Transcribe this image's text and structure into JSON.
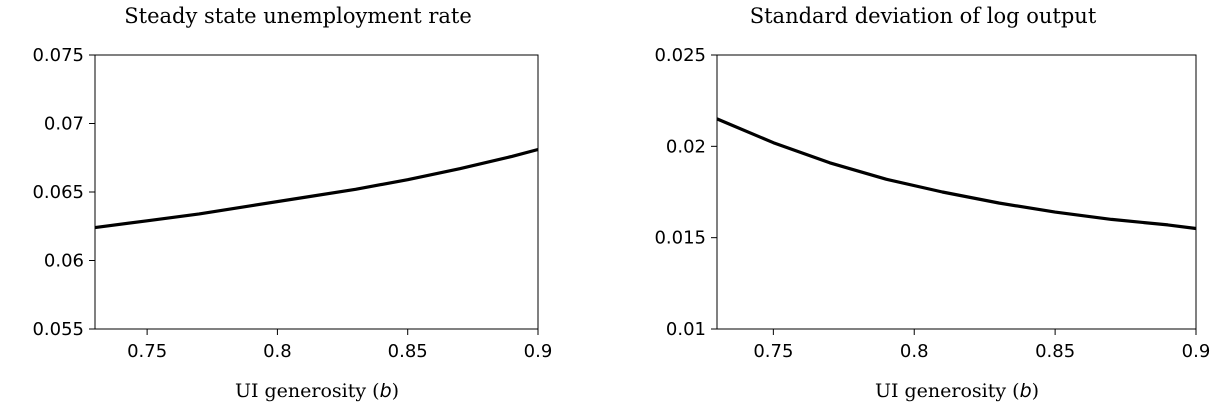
{
  "chart_data": [
    {
      "type": "line",
      "title": "Steady state unemployment rate",
      "xlabel_text": "UI generosity (",
      "xlabel_var": "b",
      "xlabel_close": ")",
      "ylabel": "",
      "xlim": [
        0.73,
        0.9
      ],
      "ylim": [
        0.055,
        0.075
      ],
      "xticks": [
        0.75,
        0.8,
        0.85,
        0.9
      ],
      "xtick_labels": [
        "0.75",
        "0.8",
        "0.85",
        "0.9"
      ],
      "yticks": [
        0.055,
        0.06,
        0.065,
        0.07,
        0.075
      ],
      "ytick_labels": [
        "0.055",
        "0.06",
        "0.065",
        "0.07",
        "0.075"
      ],
      "grid": false,
      "series": [
        {
          "color": "#000000",
          "x": [
            0.73,
            0.75,
            0.77,
            0.79,
            0.81,
            0.83,
            0.85,
            0.87,
            0.89,
            0.9
          ],
          "y": [
            0.0624,
            0.0629,
            0.0634,
            0.064,
            0.0646,
            0.0652,
            0.0659,
            0.0667,
            0.0676,
            0.0681
          ]
        }
      ]
    },
    {
      "type": "line",
      "title": "Standard deviation of log output",
      "xlabel_text": "UI generosity (",
      "xlabel_var": "b",
      "xlabel_close": ")",
      "ylabel": "",
      "xlim": [
        0.73,
        0.9
      ],
      "ylim": [
        0.01,
        0.025
      ],
      "xticks": [
        0.75,
        0.8,
        0.85,
        0.9
      ],
      "xtick_labels": [
        "0.75",
        "0.8",
        "0.85",
        "0.9"
      ],
      "yticks": [
        0.01,
        0.015,
        0.02,
        0.025
      ],
      "ytick_labels": [
        "0.01",
        "0.015",
        "0.02",
        "0.025"
      ],
      "grid": false,
      "series": [
        {
          "color": "#000000",
          "x": [
            0.73,
            0.75,
            0.77,
            0.79,
            0.81,
            0.83,
            0.85,
            0.87,
            0.89,
            0.9
          ],
          "y": [
            0.0215,
            0.0202,
            0.0191,
            0.0182,
            0.0175,
            0.0169,
            0.0164,
            0.016,
            0.0157,
            0.0155
          ]
        }
      ]
    }
  ]
}
